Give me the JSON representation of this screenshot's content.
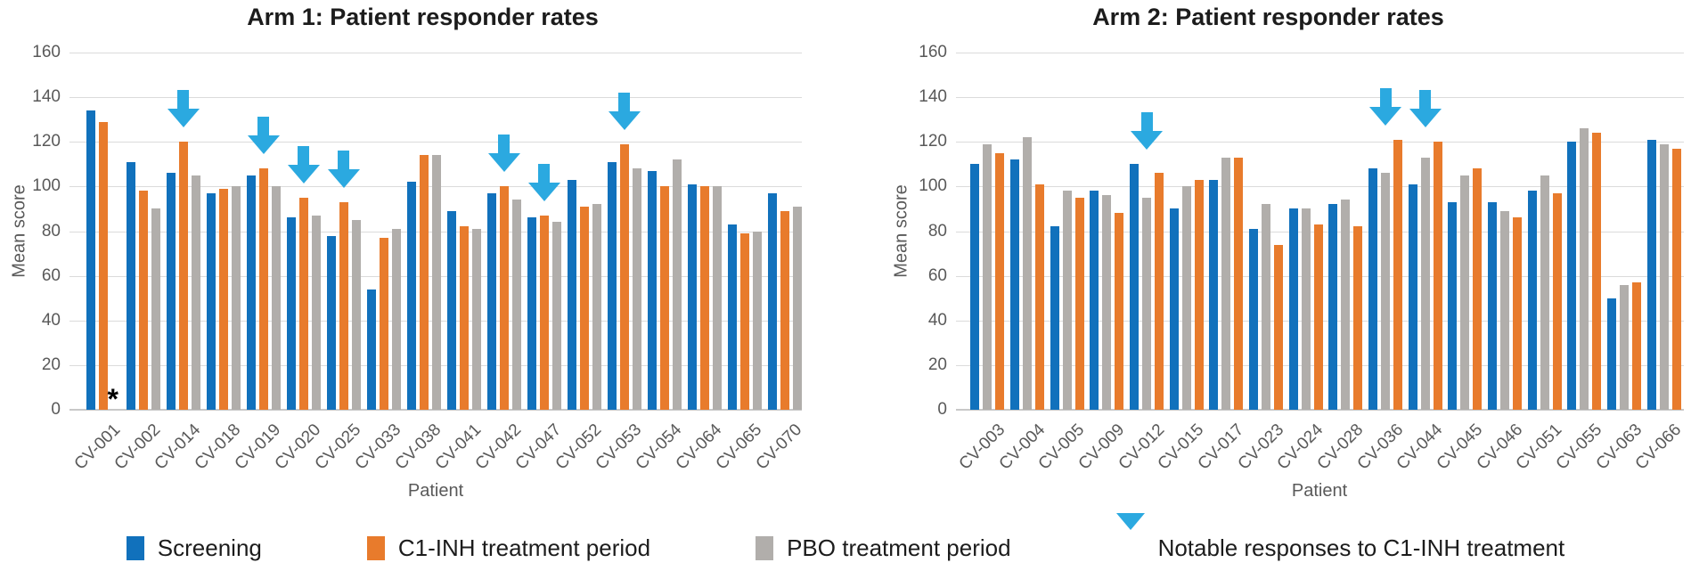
{
  "colors": {
    "screening": "#1171bc",
    "c1inh": "#e87b2c",
    "pbo": "#b1aeab",
    "arrow": "#2ba9e0",
    "gridline": "#dbdbdb",
    "axis_text": "#595959",
    "title_text": "#1c1c1c"
  },
  "legend": {
    "items": [
      {
        "label": "Screening",
        "color_key": "screening"
      },
      {
        "label": "C1-INH treatment period",
        "color_key": "c1inh"
      },
      {
        "label": "PBO treatment period",
        "color_key": "pbo"
      },
      {
        "label": "Notable responses to C1-INH treatment",
        "color_key": "arrow",
        "icon": "down-arrow-icon"
      }
    ]
  },
  "chart_data": [
    {
      "type": "bar",
      "title": "Arm 1: Patient responder rates",
      "xlabel": "Patient",
      "ylabel": "Mean score",
      "ylim": [
        0,
        160
      ],
      "ytick_step": 20,
      "grid": true,
      "legend_position": "bottom",
      "categories": [
        "CV-001",
        "CV-002",
        "CV-014",
        "CV-018",
        "CV-019",
        "CV-020",
        "CV-025",
        "CV-033",
        "CV-038",
        "CV-041",
        "CV-042",
        "CV-047",
        "CV-052",
        "CV-053",
        "CV-054",
        "CV-064",
        "CV-065",
        "CV-070"
      ],
      "bar_order": [
        "screening",
        "c1inh",
        "pbo"
      ],
      "series": [
        {
          "name": "Screening",
          "color_key": "screening",
          "values": [
            134,
            111,
            106,
            97,
            105,
            86,
            78,
            54,
            102,
            89,
            97,
            86,
            103,
            111,
            107,
            101,
            83,
            97
          ]
        },
        {
          "name": "C1-INH treatment period",
          "color_key": "c1inh",
          "values": [
            129,
            98,
            120,
            99,
            108,
            95,
            93,
            77,
            114,
            82,
            100,
            87,
            91,
            119,
            100,
            100,
            79,
            89
          ]
        },
        {
          "name": "PBO treatment period",
          "color_key": "pbo",
          "values": [
            null,
            90,
            105,
            100,
            100,
            87,
            85,
            81,
            114,
            81,
            94,
            84,
            92,
            108,
            112,
            100,
            80,
            91
          ]
        }
      ],
      "annotations": {
        "arrows_over": [
          "CV-014",
          "CV-019",
          "CV-020",
          "CV-025",
          "CV-042",
          "CV-047",
          "CV-053"
        ],
        "missing_marker": {
          "category": "CV-001",
          "series_color_key": "pbo",
          "symbol": "*"
        }
      }
    },
    {
      "type": "bar",
      "title": "Arm 2: Patient responder rates",
      "xlabel": "Patient",
      "ylabel": "Mean score",
      "ylim": [
        0,
        160
      ],
      "ytick_step": 20,
      "grid": true,
      "legend_position": "bottom",
      "categories": [
        "CV-003",
        "CV-004",
        "CV-005",
        "CV-009",
        "CV-012",
        "CV-015",
        "CV-017",
        "CV-023",
        "CV-024",
        "CV-028",
        "CV-036",
        "CV-044",
        "CV-045",
        "CV-046",
        "CV-051",
        "CV-055",
        "CV-063",
        "CV-066"
      ],
      "bar_order": [
        "screening",
        "pbo",
        "c1inh"
      ],
      "series": [
        {
          "name": "Screening",
          "color_key": "screening",
          "values": [
            110,
            112,
            82,
            98,
            110,
            90,
            103,
            81,
            90,
            92,
            108,
            101,
            93,
            93,
            98,
            120,
            50,
            121
          ]
        },
        {
          "name": "C1-INH treatment period",
          "color_key": "c1inh",
          "values": [
            115,
            101,
            95,
            88,
            106,
            103,
            113,
            74,
            83,
            82,
            121,
            120,
            108,
            86,
            97,
            124,
            57,
            117
          ]
        },
        {
          "name": "PBO treatment period",
          "color_key": "pbo",
          "values": [
            119,
            122,
            98,
            96,
            95,
            100,
            113,
            92,
            90,
            94,
            106,
            113,
            105,
            89,
            105,
            126,
            56,
            119
          ]
        }
      ],
      "annotations": {
        "arrows_over": [
          "CV-012",
          "CV-036",
          "CV-044"
        ],
        "missing_marker": null
      }
    }
  ]
}
